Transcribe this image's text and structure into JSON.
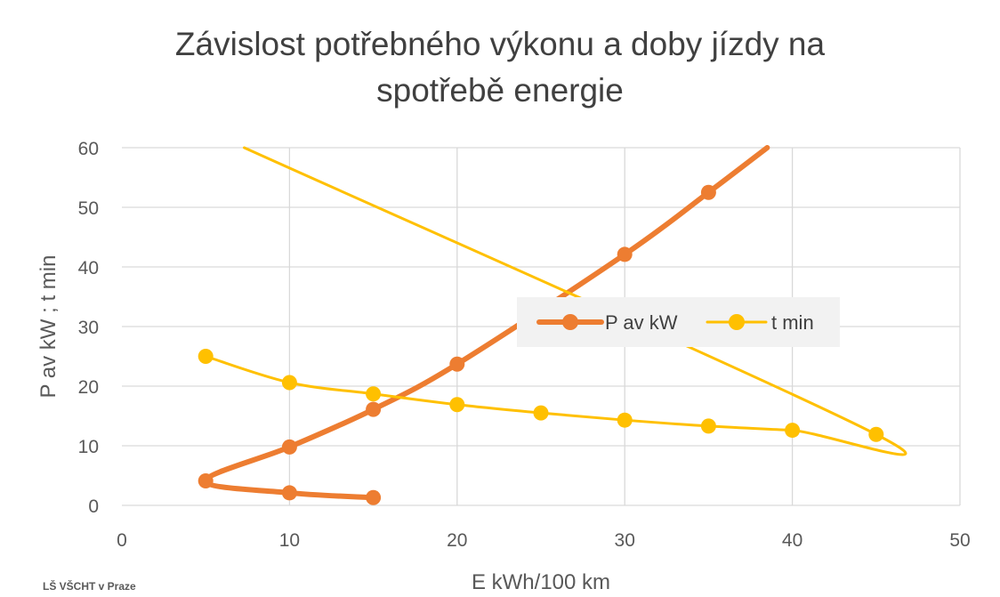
{
  "footer": "LŠ VŠCHT v Praze",
  "chart_data": {
    "type": "scatter",
    "title_lines": [
      "Závislost potřebného výkonu a doby jízdy na",
      "spotřebě energie"
    ],
    "xlabel": "E kWh/100 km",
    "ylabel": "P av kW ; t min",
    "xlim": [
      0,
      50
    ],
    "ylim": [
      0,
      60
    ],
    "xticks": [
      0,
      10,
      20,
      30,
      40,
      50
    ],
    "yticks": [
      0,
      10,
      20,
      30,
      40,
      50,
      60
    ],
    "grid": true,
    "legend_position": "right-middle",
    "series": [
      {
        "name": "P av kW",
        "color": "#ED7D31",
        "points": [
          [
            15,
            1.3
          ],
          [
            10,
            2.1
          ],
          [
            5,
            4.1
          ],
          [
            10,
            9.8
          ],
          [
            15,
            16.1
          ],
          [
            20,
            23.7
          ],
          [
            30,
            42.1
          ],
          [
            35,
            52.5
          ]
        ],
        "curve_extension": [
          [
            38.5,
            60
          ]
        ]
      },
      {
        "name": "t min",
        "color": "#FFC000",
        "points": [
          [
            5,
            25
          ],
          [
            10,
            20.6
          ],
          [
            15,
            18.7
          ],
          [
            20,
            16.9
          ],
          [
            25,
            15.5
          ],
          [
            30,
            14.3
          ],
          [
            35,
            13.3
          ],
          [
            40,
            12.6
          ],
          [
            45,
            11.9
          ]
        ],
        "curve_extension": [
          [
            7.3,
            60
          ]
        ]
      }
    ]
  }
}
